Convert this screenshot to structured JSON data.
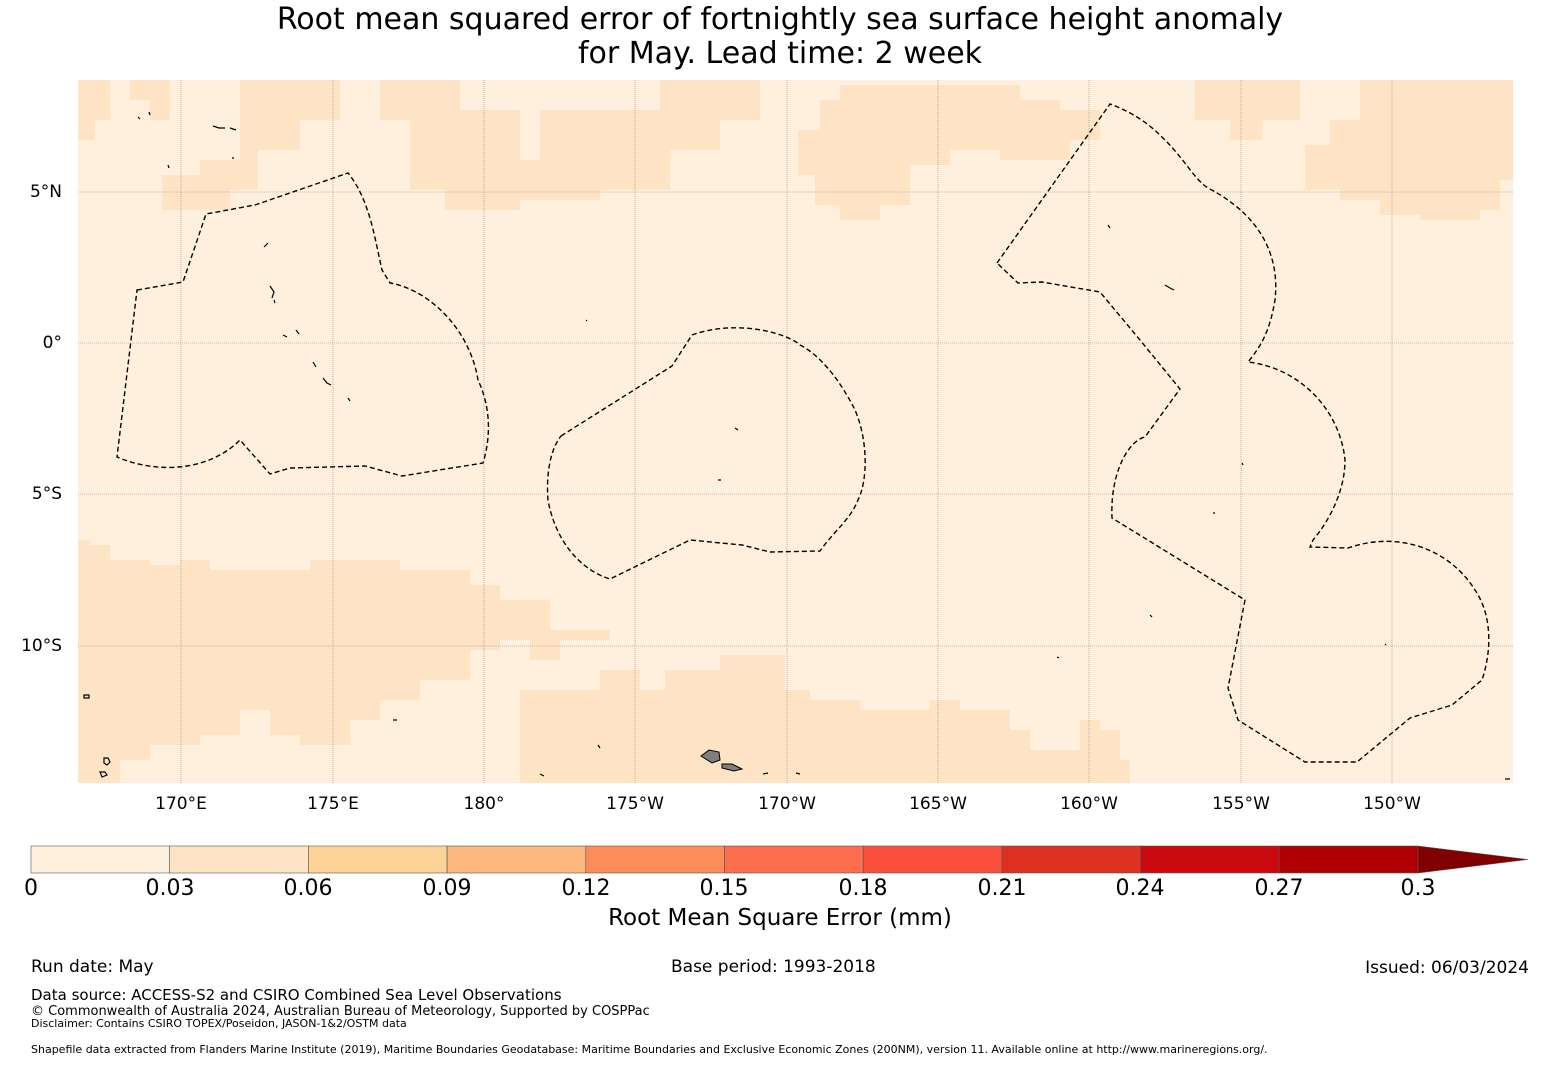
{
  "title_line1": "Root mean squared error of fortnightly sea surface height anomaly",
  "title_line2": "for May. Lead time: 2 week",
  "lon_labels": [
    "170°E",
    "175°E",
    "180°",
    "175°W",
    "170°W",
    "165°W",
    "160°W",
    "155°W",
    "150°W"
  ],
  "lat_labels": [
    "5°N",
    "0°",
    "5°S",
    "10°S"
  ],
  "colorbar": {
    "ticks": [
      "0",
      "0.03",
      "0.06",
      "0.09",
      "0.12",
      "0.15",
      "0.18",
      "0.21",
      "0.24",
      "0.27",
      "0.3"
    ],
    "colors": [
      "#fff0de",
      "#fee4c4",
      "#fed398",
      "#fdb97d",
      "#fc8c59",
      "#fc6e4c",
      "#fb4f3e",
      "#dc3020",
      "#cb0a0f",
      "#b10003",
      "#800000"
    ],
    "label": "Root Mean Square Error (mm)",
    "extend": "max"
  },
  "map_colors": {
    "low": "#fff0de",
    "mid": "#fee4c4",
    "land": "#7f7f7f"
  },
  "footer": {
    "run_date": "Run date: May",
    "base_period": "Base period: 1993-2018",
    "issued": "Issued: 06/03/2024",
    "data_source": "Data source: ACCESS-S2 and CSIRO Combined Sea Level Observations",
    "copyright": "© Commonwealth of Australia 2024, Australian Bureau of Meteorology, Supported by COSPPac",
    "disclaimer": "Disclaimer: Contains CSIRO TOPEX/Poseidon, JASON-1&2/OSTM data",
    "shapefile": "Shapefile data extracted from Flanders Marine Institute (2019), Maritime Boundaries Geodatabase: Maritime Boundaries and Exclusive Economic Zones (200NM), version 11. Available online at http://www.marineregions.org/."
  }
}
